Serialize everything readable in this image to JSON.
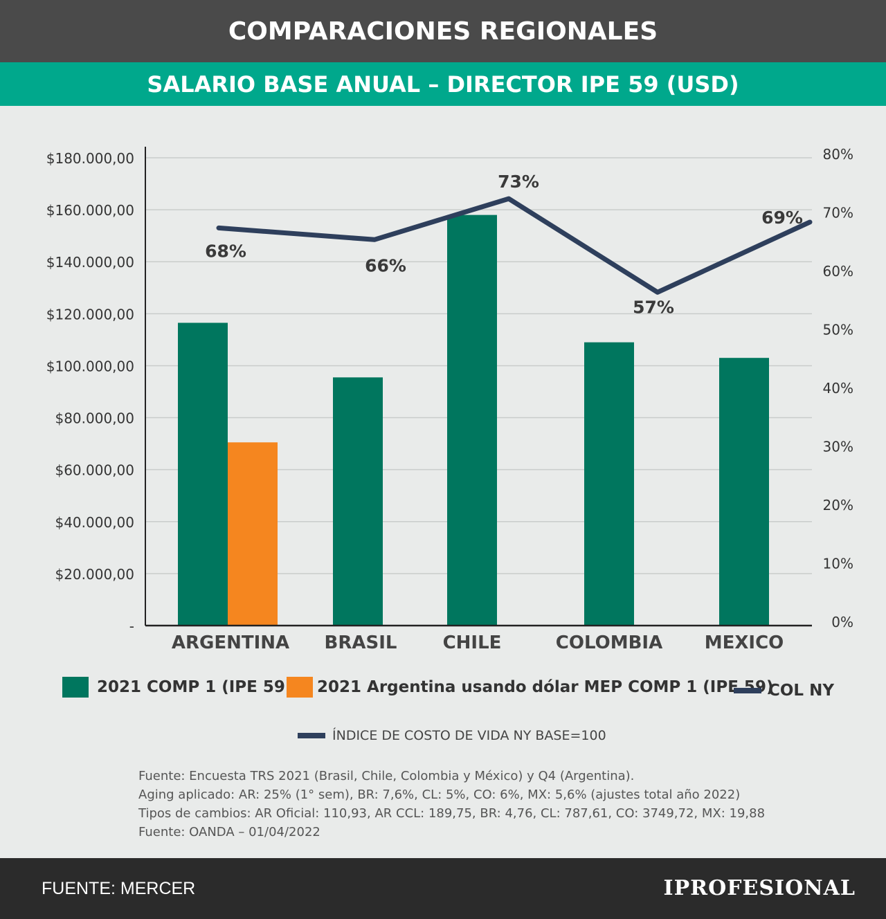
{
  "header": {
    "title": "COMPARACIONES REGIONALES",
    "subtitle": "SALARIO BASE ANUAL – DIRECTOR IPE 59 (USD)"
  },
  "chart_data": {
    "type": "bar",
    "categories": [
      "ARGENTINA",
      "BRASIL",
      "CHILE",
      "COLOMBIA",
      "MEXICO"
    ],
    "series": [
      {
        "name": "2021 COMP 1 (IPE 59)",
        "type": "bar",
        "axis": "left",
        "color": "#00765e",
        "values": [
          116500,
          95500,
          158000,
          109000,
          103000
        ]
      },
      {
        "name": "2021 Argentina usando dólar MEP COMP 1 (IPE 59)",
        "type": "bar",
        "axis": "left",
        "color": "#f5861f",
        "values": [
          70500,
          null,
          null,
          null,
          null
        ]
      },
      {
        "name": "COL NY",
        "type": "line",
        "axis": "right",
        "color": "#2e3f5c",
        "values": [
          68,
          66,
          73,
          57,
          69
        ],
        "labels": [
          "68%",
          "66%",
          "73%",
          "57%",
          "69%"
        ]
      }
    ],
    "y_left": {
      "ylim": [
        0,
        180000
      ],
      "tick_labels": [
        "-",
        "$20.000,00",
        "$40.000,00",
        "$60.000,00",
        "$80.000,00",
        "$100.000,00",
        "$120.000,00",
        "$140.000,00",
        "$160.000,00",
        "$180.000,00"
      ]
    },
    "y_right": {
      "ylim": [
        0,
        80
      ],
      "tick_labels": [
        "0%",
        "10%",
        "20%",
        "30%",
        "40%",
        "50%",
        "60%",
        "70%",
        "80%"
      ]
    },
    "grid": true,
    "legend_position": "bottom"
  },
  "legend": {
    "comp": "2021 COMP 1 (IPE 59)",
    "mep": "2021 Argentina usando dólar MEP COMP 1 (IPE 59)",
    "col": "COL NY",
    "index": "ÍNDICE DE COSTO DE VIDA NY BASE=100"
  },
  "notes": [
    "Fuente: Encuesta TRS 2021 (Brasil, Chile, Colombia y México) y Q4 (Argentina).",
    "Aging aplicado: AR: 25% (1° sem), BR: 7,6%, CL: 5%, CO: 6%, MX: 5,6% (ajustes total año 2022)",
    "Tipos de cambios: AR Oficial: 110,93, AR CCL: 189,75, BR: 4,76, CL: 787,61, CO: 3749,72, MX: 19,88",
    "Fuente: OANDA – 01/04/2022"
  ],
  "footer": {
    "source": "FUENTE: MERCER",
    "brand": "IPROFESIONAL"
  },
  "colors": {
    "teal_bar": "#00765e",
    "orange_bar": "#f5861f",
    "line": "#2e3f5c",
    "banner_green": "#00a88c",
    "banner_gray": "#4a4a4a"
  }
}
